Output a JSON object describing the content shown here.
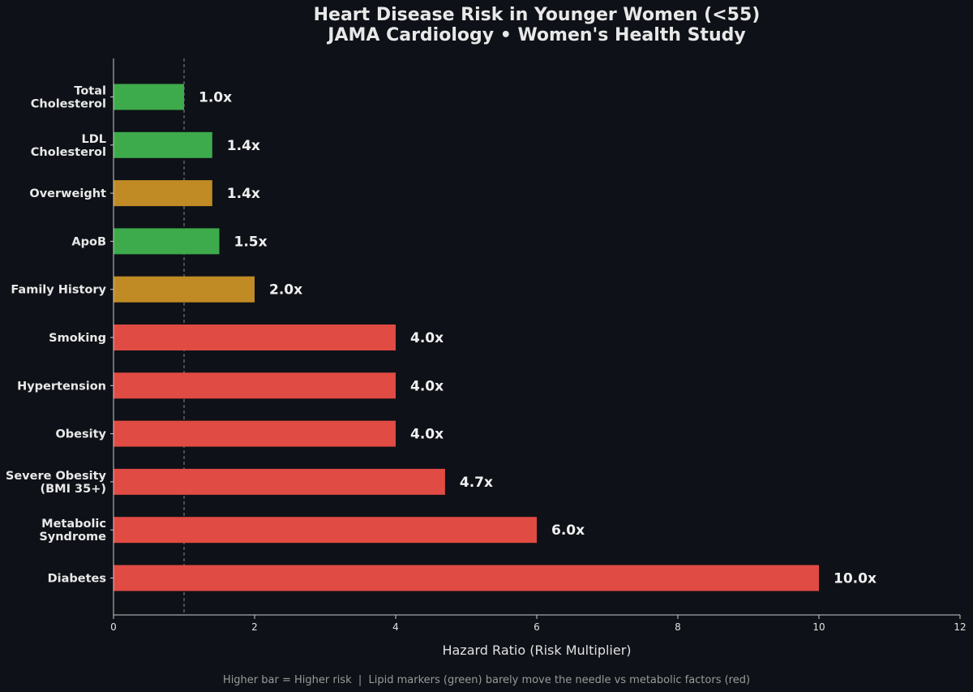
{
  "chart_data": {
    "type": "bar",
    "orientation": "horizontal",
    "title": [
      "Heart Disease Risk in Younger Women (<55)",
      "JAMA Cardiology • Women's Health Study"
    ],
    "xlabel": "Hazard Ratio (Risk Multiplier)",
    "ylabel": "",
    "xlim": [
      0,
      12
    ],
    "xticks": [
      0,
      2,
      4,
      6,
      8,
      10,
      12
    ],
    "reference_line": 1.0,
    "grid": false,
    "footnote": "Higher bar = Higher risk  |  Lipid markers (green) barely move the needle vs metabolic factors (red)",
    "bars": [
      {
        "category": [
          "Total",
          "Cholesterol"
        ],
        "value": 1.0,
        "label": "1.0x",
        "group": "lipid"
      },
      {
        "category": [
          "LDL",
          "Cholesterol"
        ],
        "value": 1.4,
        "label": "1.4x",
        "group": "lipid"
      },
      {
        "category": [
          "Overweight"
        ],
        "value": 1.4,
        "label": "1.4x",
        "group": "moderate"
      },
      {
        "category": [
          "ApoB"
        ],
        "value": 1.5,
        "label": "1.5x",
        "group": "lipid"
      },
      {
        "category": [
          "Family History"
        ],
        "value": 2.0,
        "label": "2.0x",
        "group": "moderate"
      },
      {
        "category": [
          "Smoking"
        ],
        "value": 4.0,
        "label": "4.0x",
        "group": "metabolic"
      },
      {
        "category": [
          "Hypertension"
        ],
        "value": 4.0,
        "label": "4.0x",
        "group": "metabolic"
      },
      {
        "category": [
          "Obesity"
        ],
        "value": 4.0,
        "label": "4.0x",
        "group": "metabolic"
      },
      {
        "category": [
          "Severe Obesity",
          "(BMI 35+)"
        ],
        "value": 4.7,
        "label": "4.7x",
        "group": "metabolic"
      },
      {
        "category": [
          "Metabolic",
          "Syndrome"
        ],
        "value": 6.0,
        "label": "6.0x",
        "group": "metabolic"
      },
      {
        "category": [
          "Diabetes"
        ],
        "value": 10.0,
        "label": "10.0x",
        "group": "metabolic"
      }
    ],
    "colors": {
      "lipid": "#3dab4b",
      "moderate": "#c08b24",
      "metabolic": "#e04b43",
      "background": "#0e1117",
      "axis": "#cccccc",
      "reference": "#888888"
    }
  }
}
